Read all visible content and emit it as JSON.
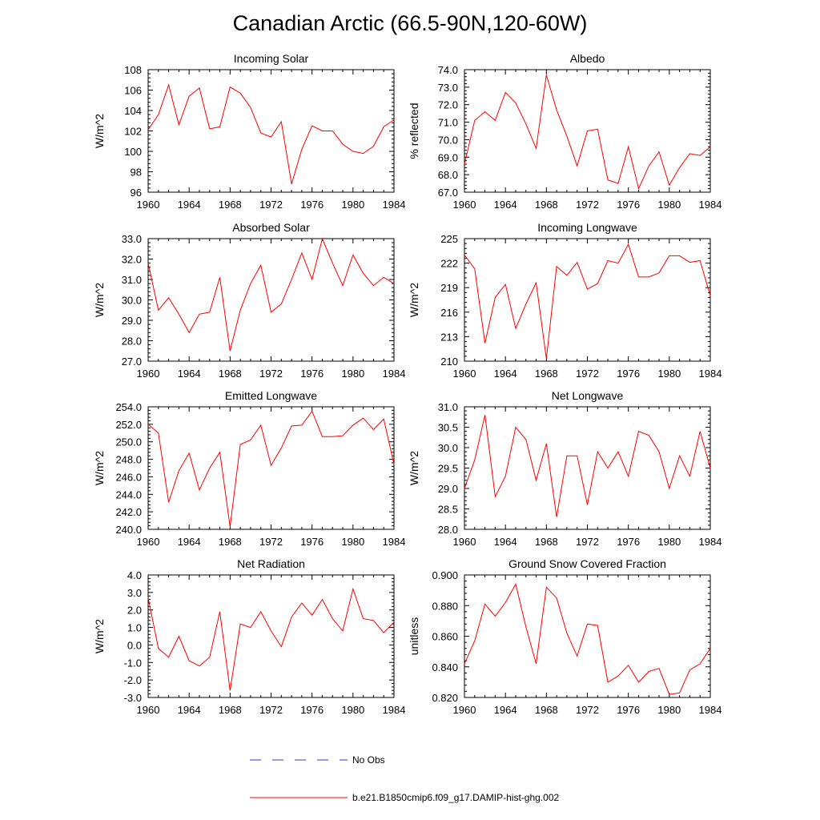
{
  "title": "Canadian Arctic (66.5-90N,120-60W)",
  "legend": {
    "obs_label": "No Obs",
    "obs_color": "#3a3ac8",
    "model_label": "b.e21.B1850cmip6.f09_g17.DAMIP-hist-ghg.002",
    "model_color": "#ff0000"
  },
  "chart_data": [
    {
      "type": "line",
      "title": "Incoming Solar",
      "ylabel": "W/m^2",
      "xlim": [
        1960,
        1984
      ],
      "ylim": [
        96,
        108
      ],
      "yticks": [
        "96",
        "98",
        "100",
        "102",
        "104",
        "106",
        "108"
      ],
      "xticks": [
        "1960",
        "1964",
        "1968",
        "1972",
        "1976",
        "1980",
        "1984"
      ],
      "x": [
        1960,
        1961,
        1962,
        1963,
        1964,
        1965,
        1966,
        1967,
        1968,
        1969,
        1970,
        1971,
        1972,
        1973,
        1974,
        1975,
        1976,
        1977,
        1978,
        1979,
        1980,
        1981,
        1982,
        1983,
        1984
      ],
      "values": [
        102.1,
        103.6,
        106.5,
        102.6,
        105.4,
        106.2,
        102.2,
        102.4,
        106.3,
        105.7,
        104.3,
        101.8,
        101.4,
        102.9,
        96.8,
        100.2,
        102.5,
        102.0,
        102.0,
        100.7,
        100.0,
        99.8,
        100.5,
        102.4,
        103.1
      ]
    },
    {
      "type": "line",
      "title": "Albedo",
      "ylabel": "% reflected",
      "xlim": [
        1960,
        1984
      ],
      "ylim": [
        67,
        74
      ],
      "yticks": [
        "67.0",
        "68.0",
        "69.0",
        "70.0",
        "71.0",
        "72.0",
        "73.0",
        "74.0"
      ],
      "xticks": [
        "1960",
        "1964",
        "1968",
        "1972",
        "1976",
        "1980",
        "1984"
      ],
      "x": [
        1960,
        1961,
        1962,
        1963,
        1964,
        1965,
        1966,
        1967,
        1968,
        1969,
        1970,
        1971,
        1972,
        1973,
        1974,
        1975,
        1976,
        1977,
        1978,
        1979,
        1980,
        1981,
        1982,
        1983,
        1984
      ],
      "values": [
        68.6,
        71.1,
        71.6,
        71.1,
        72.7,
        72.1,
        70.9,
        69.5,
        73.7,
        71.7,
        70.2,
        68.5,
        70.5,
        70.6,
        67.7,
        67.5,
        69.6,
        67.2,
        68.5,
        69.3,
        67.4,
        68.4,
        69.2,
        69.1,
        69.6
      ]
    },
    {
      "type": "line",
      "title": "Absorbed Solar",
      "ylabel": "W/m^2",
      "xlim": [
        1960,
        1984
      ],
      "ylim": [
        27,
        33
      ],
      "yticks": [
        "27.0",
        "28.0",
        "29.0",
        "30.0",
        "31.0",
        "32.0",
        "33.0"
      ],
      "xticks": [
        "1960",
        "1964",
        "1968",
        "1972",
        "1976",
        "1980",
        "1984"
      ],
      "x": [
        1960,
        1961,
        1962,
        1963,
        1964,
        1965,
        1966,
        1967,
        1968,
        1969,
        1970,
        1971,
        1972,
        1973,
        1974,
        1975,
        1976,
        1977,
        1978,
        1979,
        1980,
        1981,
        1982,
        1983,
        1984
      ],
      "values": [
        31.8,
        29.5,
        30.1,
        29.3,
        28.4,
        29.3,
        29.4,
        31.1,
        27.5,
        29.5,
        30.8,
        31.7,
        29.4,
        29.8,
        31.0,
        32.3,
        31.0,
        33.0,
        31.8,
        30.7,
        32.2,
        31.3,
        30.7,
        31.1,
        30.8
      ]
    },
    {
      "type": "line",
      "title": "Incoming Longwave",
      "ylabel": "W/m^2",
      "xlim": [
        1960,
        1984
      ],
      "ylim": [
        210,
        225
      ],
      "yticks": [
        "210",
        "213",
        "216",
        "219",
        "222",
        "225"
      ],
      "xticks": [
        "1960",
        "1964",
        "1968",
        "1972",
        "1976",
        "1980",
        "1984"
      ],
      "x": [
        1960,
        1961,
        1962,
        1963,
        1964,
        1965,
        1966,
        1967,
        1968,
        1969,
        1970,
        1971,
        1972,
        1973,
        1974,
        1975,
        1976,
        1977,
        1978,
        1979,
        1980,
        1981,
        1982,
        1983,
        1984
      ],
      "values": [
        223.0,
        221.3,
        212.2,
        217.8,
        219.4,
        214.0,
        217.0,
        219.6,
        210.3,
        221.6,
        220.5,
        222.1,
        218.8,
        219.5,
        222.3,
        222.0,
        224.3,
        220.3,
        220.3,
        220.8,
        222.9,
        222.9,
        222.1,
        222.3,
        218.0
      ]
    },
    {
      "type": "line",
      "title": "Emitted Longwave",
      "ylabel": "W/m^2",
      "xlim": [
        1960,
        1984
      ],
      "ylim": [
        240,
        254
      ],
      "yticks": [
        "240.0",
        "242.0",
        "244.0",
        "246.0",
        "248.0",
        "250.0",
        "252.0",
        "254.0"
      ],
      "xticks": [
        "1960",
        "1964",
        "1968",
        "1972",
        "1976",
        "1980",
        "1984"
      ],
      "x": [
        1960,
        1961,
        1962,
        1963,
        1964,
        1965,
        1966,
        1967,
        1968,
        1969,
        1970,
        1971,
        1972,
        1973,
        1974,
        1975,
        1976,
        1977,
        1978,
        1979,
        1980,
        1981,
        1982,
        1983,
        1984
      ],
      "values": [
        252.0,
        251.0,
        243.1,
        246.7,
        248.7,
        244.5,
        247.0,
        248.8,
        240.3,
        249.7,
        250.2,
        251.9,
        247.3,
        249.3,
        251.8,
        251.9,
        253.5,
        250.6,
        250.6,
        250.7,
        251.9,
        252.7,
        251.4,
        252.6,
        247.4
      ]
    },
    {
      "type": "line",
      "title": "Net Longwave",
      "ylabel": "W/m^2",
      "xlim": [
        1960,
        1984
      ],
      "ylim": [
        28,
        31
      ],
      "yticks": [
        "28.0",
        "28.5",
        "29.0",
        "29.5",
        "30.0",
        "30.5",
        "31.0"
      ],
      "xticks": [
        "1960",
        "1964",
        "1968",
        "1972",
        "1976",
        "1980",
        "1984"
      ],
      "x": [
        1960,
        1961,
        1962,
        1963,
        1964,
        1965,
        1966,
        1967,
        1968,
        1969,
        1970,
        1971,
        1972,
        1973,
        1974,
        1975,
        1976,
        1977,
        1978,
        1979,
        1980,
        1981,
        1982,
        1983,
        1984
      ],
      "values": [
        29.0,
        29.7,
        30.8,
        28.8,
        29.3,
        30.5,
        30.2,
        29.2,
        30.1,
        28.3,
        29.8,
        29.8,
        28.6,
        29.9,
        29.5,
        29.9,
        29.3,
        30.4,
        30.3,
        29.9,
        29.0,
        29.8,
        29.3,
        30.4,
        29.5
      ]
    },
    {
      "type": "line",
      "title": "Net Radiation",
      "ylabel": "W/m^2",
      "xlim": [
        1960,
        1984
      ],
      "ylim": [
        -3,
        4
      ],
      "yticks": [
        "-3.0",
        "-2.0",
        "-1.0",
        "0.0",
        "1.0",
        "2.0",
        "3.0",
        "4.0"
      ],
      "xticks": [
        "1960",
        "1964",
        "1968",
        "1972",
        "1976",
        "1980",
        "1984"
      ],
      "x": [
        1960,
        1961,
        1962,
        1963,
        1964,
        1965,
        1966,
        1967,
        1968,
        1969,
        1970,
        1971,
        1972,
        1973,
        1974,
        1975,
        1976,
        1977,
        1978,
        1979,
        1980,
        1981,
        1982,
        1983,
        1984
      ],
      "values": [
        2.7,
        -0.2,
        -0.7,
        0.5,
        -0.9,
        -1.2,
        -0.7,
        1.9,
        -2.6,
        1.2,
        1.0,
        1.9,
        0.8,
        -0.1,
        1.6,
        2.4,
        1.7,
        2.6,
        1.5,
        0.8,
        3.2,
        1.5,
        1.4,
        0.7,
        1.3
      ]
    },
    {
      "type": "line",
      "title": "Ground Snow Covered Fraction",
      "ylabel": "unitless",
      "xlim": [
        1960,
        1984
      ],
      "ylim": [
        0.82,
        0.9
      ],
      "yticks": [
        "0.820",
        "0.840",
        "0.860",
        "0.880",
        "0.900"
      ],
      "xticks": [
        "1960",
        "1964",
        "1968",
        "1972",
        "1976",
        "1980",
        "1984"
      ],
      "x": [
        1960,
        1961,
        1962,
        1963,
        1964,
        1965,
        1966,
        1967,
        1968,
        1969,
        1970,
        1971,
        1972,
        1973,
        1974,
        1975,
        1976,
        1977,
        1978,
        1979,
        1980,
        1981,
        1982,
        1983,
        1984
      ],
      "values": [
        0.842,
        0.857,
        0.881,
        0.873,
        0.882,
        0.894,
        0.866,
        0.842,
        0.892,
        0.885,
        0.862,
        0.847,
        0.868,
        0.867,
        0.83,
        0.834,
        0.841,
        0.83,
        0.837,
        0.839,
        0.822,
        0.823,
        0.838,
        0.842,
        0.852
      ]
    }
  ]
}
